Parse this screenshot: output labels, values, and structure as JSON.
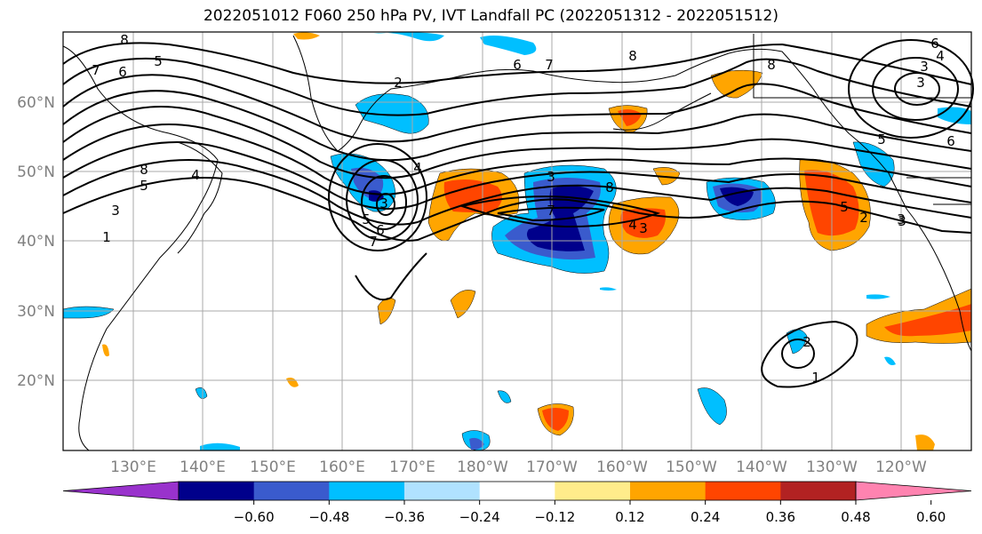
{
  "title": "2022051012 F060 250 hPa PV, IVT Landfall PC (2022051312 - 2022051512)",
  "lat_labels": [
    "60°N",
    "50°N",
    "40°N",
    "30°N",
    "20°N"
  ],
  "lon_labels": [
    "130°E",
    "140°E",
    "150°E",
    "160°E",
    "170°E",
    "180°W",
    "170°W",
    "160°W",
    "150°W",
    "140°W",
    "130°W",
    "120°W"
  ],
  "contour_labels": [
    "8",
    "7",
    "6",
    "5",
    "2",
    "6",
    "7",
    "8",
    "8",
    "6",
    "4",
    "3",
    "3",
    "5",
    "6",
    "8",
    "5",
    "4",
    "3",
    "1",
    "4",
    "6",
    "3",
    "7",
    "5",
    "7",
    "8",
    "3",
    "4",
    "3",
    "5",
    "3",
    "2",
    "1",
    "2",
    "3"
  ],
  "colorbar": {
    "ticks": [
      "−0.60",
      "−0.48",
      "−0.36",
      "−0.24",
      "−0.12",
      "0.12",
      "0.24",
      "0.36",
      "0.48",
      "0.60"
    ],
    "colors": [
      "#9932cc",
      "#00008b",
      "#3a5bcd",
      "#00bfff",
      "#b0e2ff",
      "#ffffff",
      "#ffec8b",
      "#ffa500",
      "#ff4500",
      "#b22222",
      "#ff83b0"
    ]
  },
  "colors": {
    "frame": "#000000",
    "grid": "#a9a9a9",
    "coast": "#000000",
    "tick_label": "#808080"
  }
}
